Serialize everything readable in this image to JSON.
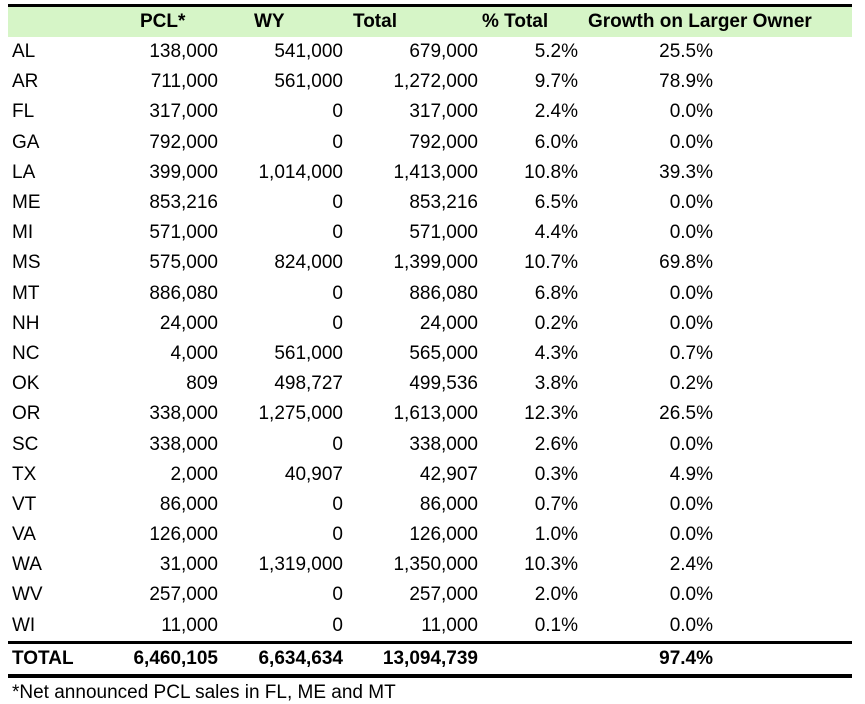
{
  "table": {
    "headers": [
      "",
      "PCL*",
      "WY",
      "Total",
      "% Total",
      "Growth on Larger Owner"
    ],
    "rows": [
      {
        "state": "AL",
        "pcl": "138,000",
        "wy": "541,000",
        "total": "679,000",
        "pct_total": "5.2%",
        "growth": "25.5%"
      },
      {
        "state": "AR",
        "pcl": "711,000",
        "wy": "561,000",
        "total": "1,272,000",
        "pct_total": "9.7%",
        "growth": "78.9%"
      },
      {
        "state": "FL",
        "pcl": "317,000",
        "wy": "0",
        "total": "317,000",
        "pct_total": "2.4%",
        "growth": "0.0%"
      },
      {
        "state": "GA",
        "pcl": "792,000",
        "wy": "0",
        "total": "792,000",
        "pct_total": "6.0%",
        "growth": "0.0%"
      },
      {
        "state": "LA",
        "pcl": "399,000",
        "wy": "1,014,000",
        "total": "1,413,000",
        "pct_total": "10.8%",
        "growth": "39.3%"
      },
      {
        "state": "ME",
        "pcl": "853,216",
        "wy": "0",
        "total": "853,216",
        "pct_total": "6.5%",
        "growth": "0.0%"
      },
      {
        "state": "MI",
        "pcl": "571,000",
        "wy": "0",
        "total": "571,000",
        "pct_total": "4.4%",
        "growth": "0.0%"
      },
      {
        "state": "MS",
        "pcl": "575,000",
        "wy": "824,000",
        "total": "1,399,000",
        "pct_total": "10.7%",
        "growth": "69.8%"
      },
      {
        "state": "MT",
        "pcl": "886,080",
        "wy": "0",
        "total": "886,080",
        "pct_total": "6.8%",
        "growth": "0.0%"
      },
      {
        "state": "NH",
        "pcl": "24,000",
        "wy": "0",
        "total": "24,000",
        "pct_total": "0.2%",
        "growth": "0.0%"
      },
      {
        "state": "NC",
        "pcl": "4,000",
        "wy": "561,000",
        "total": "565,000",
        "pct_total": "4.3%",
        "growth": "0.7%"
      },
      {
        "state": "OK",
        "pcl": "809",
        "wy": "498,727",
        "total": "499,536",
        "pct_total": "3.8%",
        "growth": "0.2%"
      },
      {
        "state": "OR",
        "pcl": "338,000",
        "wy": "1,275,000",
        "total": "1,613,000",
        "pct_total": "12.3%",
        "growth": "26.5%"
      },
      {
        "state": "SC",
        "pcl": "338,000",
        "wy": "0",
        "total": "338,000",
        "pct_total": "2.6%",
        "growth": "0.0%"
      },
      {
        "state": "TX",
        "pcl": "2,000",
        "wy": "40,907",
        "total": "42,907",
        "pct_total": "0.3%",
        "growth": "4.9%"
      },
      {
        "state": "VT",
        "pcl": "86,000",
        "wy": "0",
        "total": "86,000",
        "pct_total": "0.7%",
        "growth": "0.0%"
      },
      {
        "state": "VA",
        "pcl": "126,000",
        "wy": "0",
        "total": "126,000",
        "pct_total": "1.0%",
        "growth": "0.0%"
      },
      {
        "state": "WA",
        "pcl": "31,000",
        "wy": "1,319,000",
        "total": "1,350,000",
        "pct_total": "10.3%",
        "growth": "2.4%"
      },
      {
        "state": "WV",
        "pcl": "257,000",
        "wy": "0",
        "total": "257,000",
        "pct_total": "2.0%",
        "growth": "0.0%"
      },
      {
        "state": "WI",
        "pcl": "11,000",
        "wy": "0",
        "total": "11,000",
        "pct_total": "0.1%",
        "growth": "0.0%"
      }
    ],
    "total_row": {
      "state": "TOTAL",
      "pcl": "6,460,105",
      "wy": "6,634,634",
      "total": "13,094,739",
      "pct_total": "",
      "growth": "97.4%"
    }
  },
  "footnote": "*Net announced PCL sales in FL, ME and MT",
  "colors": {
    "header_bg": "#d6f5c7",
    "rule": "#000000"
  }
}
